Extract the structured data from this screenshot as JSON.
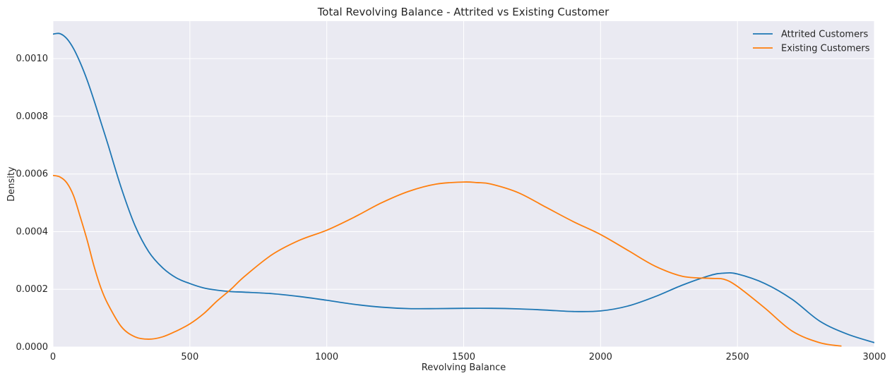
{
  "chart_data": {
    "type": "line",
    "title": "Total Revolving Balance - Attrited vs Existing Customer",
    "xlabel": "Revolving Balance",
    "ylabel": "Density",
    "xlim": [
      0,
      3000
    ],
    "ylim": [
      0,
      0.00113
    ],
    "grid": true,
    "legend_position": "top-right",
    "x_ticks": [
      0,
      500,
      1000,
      1500,
      2000,
      2500,
      3000
    ],
    "x_tick_labels": [
      "0",
      "500",
      "1000",
      "1500",
      "2000",
      "2500",
      "3000"
    ],
    "y_ticks": [
      0,
      0.0002,
      0.0004,
      0.0006,
      0.0008,
      0.001
    ],
    "y_tick_labels": [
      "0.0000",
      "0.0002",
      "0.0004",
      "0.0006",
      "0.0008",
      "0.0010"
    ],
    "series": [
      {
        "name": "Attrited Customers",
        "color": "#1f77b4",
        "x": [
          0,
          25,
          50,
          75,
          100,
          125,
          150,
          175,
          200,
          250,
          300,
          350,
          400,
          450,
          500,
          550,
          600,
          650,
          700,
          800,
          900,
          1000,
          1100,
          1200,
          1300,
          1400,
          1500,
          1600,
          1700,
          1800,
          1900,
          2000,
          2100,
          2200,
          2300,
          2400,
          2450,
          2500,
          2600,
          2700,
          2800,
          2900,
          3000
        ],
        "y": [
          0.001085,
          0.001087,
          0.00107,
          0.001035,
          0.000985,
          0.000925,
          0.000855,
          0.00078,
          0.000705,
          0.00055,
          0.00042,
          0.00033,
          0.000275,
          0.00024,
          0.00022,
          0.000205,
          0.000197,
          0.000192,
          0.00019,
          0.000185,
          0.000175,
          0.000162,
          0.000148,
          0.000138,
          0.000133,
          0.000133,
          0.000134,
          0.000134,
          0.000132,
          0.000128,
          0.000123,
          0.000125,
          0.000142,
          0.000175,
          0.000215,
          0.000248,
          0.000256,
          0.000253,
          0.00022,
          0.000165,
          9e-05,
          4.5e-05,
          1.5e-05
        ]
      },
      {
        "name": "Existing Customers",
        "color": "#ff7f0e",
        "x": [
          0,
          25,
          50,
          75,
          100,
          125,
          150,
          175,
          200,
          250,
          300,
          350,
          400,
          450,
          500,
          550,
          600,
          650,
          700,
          800,
          900,
          1000,
          1100,
          1200,
          1300,
          1400,
          1500,
          1550,
          1600,
          1700,
          1800,
          1900,
          2000,
          2100,
          2200,
          2300,
          2400,
          2450,
          2500,
          2600,
          2700,
          2800,
          2880
        ],
        "y": [
          0.000595,
          0.00059,
          0.00057,
          0.000525,
          0.00045,
          0.00037,
          0.00028,
          0.000205,
          0.00015,
          7e-05,
          3.5e-05,
          2.7e-05,
          3.5e-05,
          5.5e-05,
          8e-05,
          0.000115,
          0.00016,
          0.0002,
          0.000245,
          0.00032,
          0.00037,
          0.000405,
          0.00045,
          0.0005,
          0.00054,
          0.000565,
          0.000572,
          0.00057,
          0.000565,
          0.000535,
          0.000485,
          0.000435,
          0.00039,
          0.000335,
          0.00028,
          0.000245,
          0.000238,
          0.000235,
          0.00021,
          0.000135,
          5.5e-05,
          1.5e-05,
          3e-06
        ]
      }
    ]
  }
}
